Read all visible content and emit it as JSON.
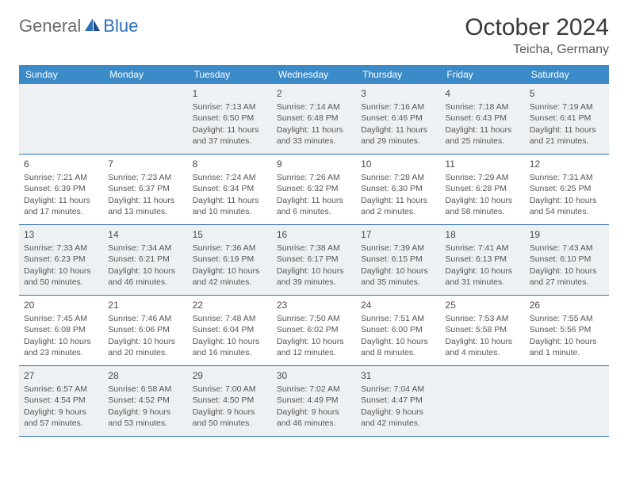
{
  "logo": {
    "text1": "General",
    "text2": "Blue"
  },
  "title": "October 2024",
  "location": "Teicha, Germany",
  "colors": {
    "header_bg": "#3b8bc9",
    "border": "#2d6fb8",
    "shade": "#eef1f3",
    "text": "#555555"
  },
  "dow": [
    "Sunday",
    "Monday",
    "Tuesday",
    "Wednesday",
    "Thursday",
    "Friday",
    "Saturday"
  ],
  "weeks": [
    [
      {
        "n": "",
        "sr": "",
        "ss": "",
        "dl": ""
      },
      {
        "n": "",
        "sr": "",
        "ss": "",
        "dl": ""
      },
      {
        "n": "1",
        "sr": "Sunrise: 7:13 AM",
        "ss": "Sunset: 6:50 PM",
        "dl": "Daylight: 11 hours and 37 minutes."
      },
      {
        "n": "2",
        "sr": "Sunrise: 7:14 AM",
        "ss": "Sunset: 6:48 PM",
        "dl": "Daylight: 11 hours and 33 minutes."
      },
      {
        "n": "3",
        "sr": "Sunrise: 7:16 AM",
        "ss": "Sunset: 6:46 PM",
        "dl": "Daylight: 11 hours and 29 minutes."
      },
      {
        "n": "4",
        "sr": "Sunrise: 7:18 AM",
        "ss": "Sunset: 6:43 PM",
        "dl": "Daylight: 11 hours and 25 minutes."
      },
      {
        "n": "5",
        "sr": "Sunrise: 7:19 AM",
        "ss": "Sunset: 6:41 PM",
        "dl": "Daylight: 11 hours and 21 minutes."
      }
    ],
    [
      {
        "n": "6",
        "sr": "Sunrise: 7:21 AM",
        "ss": "Sunset: 6:39 PM",
        "dl": "Daylight: 11 hours and 17 minutes."
      },
      {
        "n": "7",
        "sr": "Sunrise: 7:23 AM",
        "ss": "Sunset: 6:37 PM",
        "dl": "Daylight: 11 hours and 13 minutes."
      },
      {
        "n": "8",
        "sr": "Sunrise: 7:24 AM",
        "ss": "Sunset: 6:34 PM",
        "dl": "Daylight: 11 hours and 10 minutes."
      },
      {
        "n": "9",
        "sr": "Sunrise: 7:26 AM",
        "ss": "Sunset: 6:32 PM",
        "dl": "Daylight: 11 hours and 6 minutes."
      },
      {
        "n": "10",
        "sr": "Sunrise: 7:28 AM",
        "ss": "Sunset: 6:30 PM",
        "dl": "Daylight: 11 hours and 2 minutes."
      },
      {
        "n": "11",
        "sr": "Sunrise: 7:29 AM",
        "ss": "Sunset: 6:28 PM",
        "dl": "Daylight: 10 hours and 58 minutes."
      },
      {
        "n": "12",
        "sr": "Sunrise: 7:31 AM",
        "ss": "Sunset: 6:25 PM",
        "dl": "Daylight: 10 hours and 54 minutes."
      }
    ],
    [
      {
        "n": "13",
        "sr": "Sunrise: 7:33 AM",
        "ss": "Sunset: 6:23 PM",
        "dl": "Daylight: 10 hours and 50 minutes."
      },
      {
        "n": "14",
        "sr": "Sunrise: 7:34 AM",
        "ss": "Sunset: 6:21 PM",
        "dl": "Daylight: 10 hours and 46 minutes."
      },
      {
        "n": "15",
        "sr": "Sunrise: 7:36 AM",
        "ss": "Sunset: 6:19 PM",
        "dl": "Daylight: 10 hours and 42 minutes."
      },
      {
        "n": "16",
        "sr": "Sunrise: 7:38 AM",
        "ss": "Sunset: 6:17 PM",
        "dl": "Daylight: 10 hours and 39 minutes."
      },
      {
        "n": "17",
        "sr": "Sunrise: 7:39 AM",
        "ss": "Sunset: 6:15 PM",
        "dl": "Daylight: 10 hours and 35 minutes."
      },
      {
        "n": "18",
        "sr": "Sunrise: 7:41 AM",
        "ss": "Sunset: 6:13 PM",
        "dl": "Daylight: 10 hours and 31 minutes."
      },
      {
        "n": "19",
        "sr": "Sunrise: 7:43 AM",
        "ss": "Sunset: 6:10 PM",
        "dl": "Daylight: 10 hours and 27 minutes."
      }
    ],
    [
      {
        "n": "20",
        "sr": "Sunrise: 7:45 AM",
        "ss": "Sunset: 6:08 PM",
        "dl": "Daylight: 10 hours and 23 minutes."
      },
      {
        "n": "21",
        "sr": "Sunrise: 7:46 AM",
        "ss": "Sunset: 6:06 PM",
        "dl": "Daylight: 10 hours and 20 minutes."
      },
      {
        "n": "22",
        "sr": "Sunrise: 7:48 AM",
        "ss": "Sunset: 6:04 PM",
        "dl": "Daylight: 10 hours and 16 minutes."
      },
      {
        "n": "23",
        "sr": "Sunrise: 7:50 AM",
        "ss": "Sunset: 6:02 PM",
        "dl": "Daylight: 10 hours and 12 minutes."
      },
      {
        "n": "24",
        "sr": "Sunrise: 7:51 AM",
        "ss": "Sunset: 6:00 PM",
        "dl": "Daylight: 10 hours and 8 minutes."
      },
      {
        "n": "25",
        "sr": "Sunrise: 7:53 AM",
        "ss": "Sunset: 5:58 PM",
        "dl": "Daylight: 10 hours and 4 minutes."
      },
      {
        "n": "26",
        "sr": "Sunrise: 7:55 AM",
        "ss": "Sunset: 5:56 PM",
        "dl": "Daylight: 10 hours and 1 minute."
      }
    ],
    [
      {
        "n": "27",
        "sr": "Sunrise: 6:57 AM",
        "ss": "Sunset: 4:54 PM",
        "dl": "Daylight: 9 hours and 57 minutes."
      },
      {
        "n": "28",
        "sr": "Sunrise: 6:58 AM",
        "ss": "Sunset: 4:52 PM",
        "dl": "Daylight: 9 hours and 53 minutes."
      },
      {
        "n": "29",
        "sr": "Sunrise: 7:00 AM",
        "ss": "Sunset: 4:50 PM",
        "dl": "Daylight: 9 hours and 50 minutes."
      },
      {
        "n": "30",
        "sr": "Sunrise: 7:02 AM",
        "ss": "Sunset: 4:49 PM",
        "dl": "Daylight: 9 hours and 46 minutes."
      },
      {
        "n": "31",
        "sr": "Sunrise: 7:04 AM",
        "ss": "Sunset: 4:47 PM",
        "dl": "Daylight: 9 hours and 42 minutes."
      },
      {
        "n": "",
        "sr": "",
        "ss": "",
        "dl": ""
      },
      {
        "n": "",
        "sr": "",
        "ss": "",
        "dl": ""
      }
    ]
  ],
  "shaded_rows": [
    0,
    2,
    4
  ]
}
